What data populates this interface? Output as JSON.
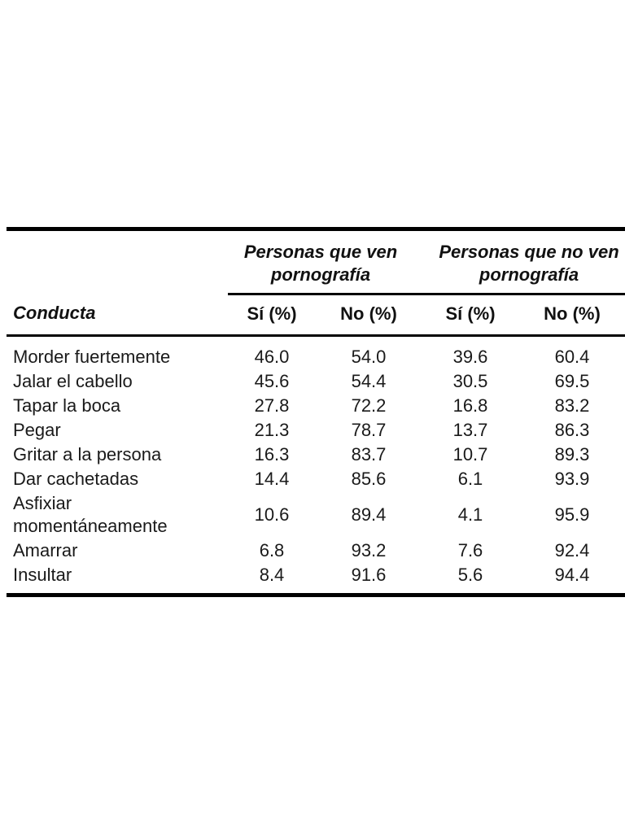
{
  "chart_data": {
    "type": "table",
    "group_headers": [
      "Personas que ven pornografía",
      "Personas que no ven pornografía"
    ],
    "columns": [
      "Conducta",
      "Sí (%)",
      "No (%)",
      "Sí (%)",
      "No (%)"
    ],
    "rows": [
      {
        "conducta": "Morder fuertemente",
        "values": [
          "46.0",
          "54.0",
          "39.6",
          "60.4"
        ]
      },
      {
        "conducta": "Jalar el cabello",
        "values": [
          "45.6",
          "54.4",
          "30.5",
          "69.5"
        ]
      },
      {
        "conducta": "Tapar la boca",
        "values": [
          "27.8",
          "72.2",
          "16.8",
          "83.2"
        ]
      },
      {
        "conducta": "Pegar",
        "values": [
          "21.3",
          "78.7",
          "13.7",
          "86.3"
        ]
      },
      {
        "conducta": "Gritar a la persona",
        "values": [
          "16.3",
          "83.7",
          "10.7",
          "89.3"
        ]
      },
      {
        "conducta": "Dar cachetadas",
        "values": [
          "14.4",
          "85.6",
          "6.1",
          "93.9"
        ]
      },
      {
        "conducta": "Asfixiar momentáneamente",
        "values": [
          "10.6",
          "89.4",
          "4.1",
          "95.9"
        ]
      },
      {
        "conducta": "Amarrar",
        "values": [
          "6.8",
          "93.2",
          "7.6",
          "92.4"
        ]
      },
      {
        "conducta": "Insultar",
        "values": [
          "8.4",
          "91.6",
          "5.6",
          "94.4"
        ]
      }
    ]
  }
}
